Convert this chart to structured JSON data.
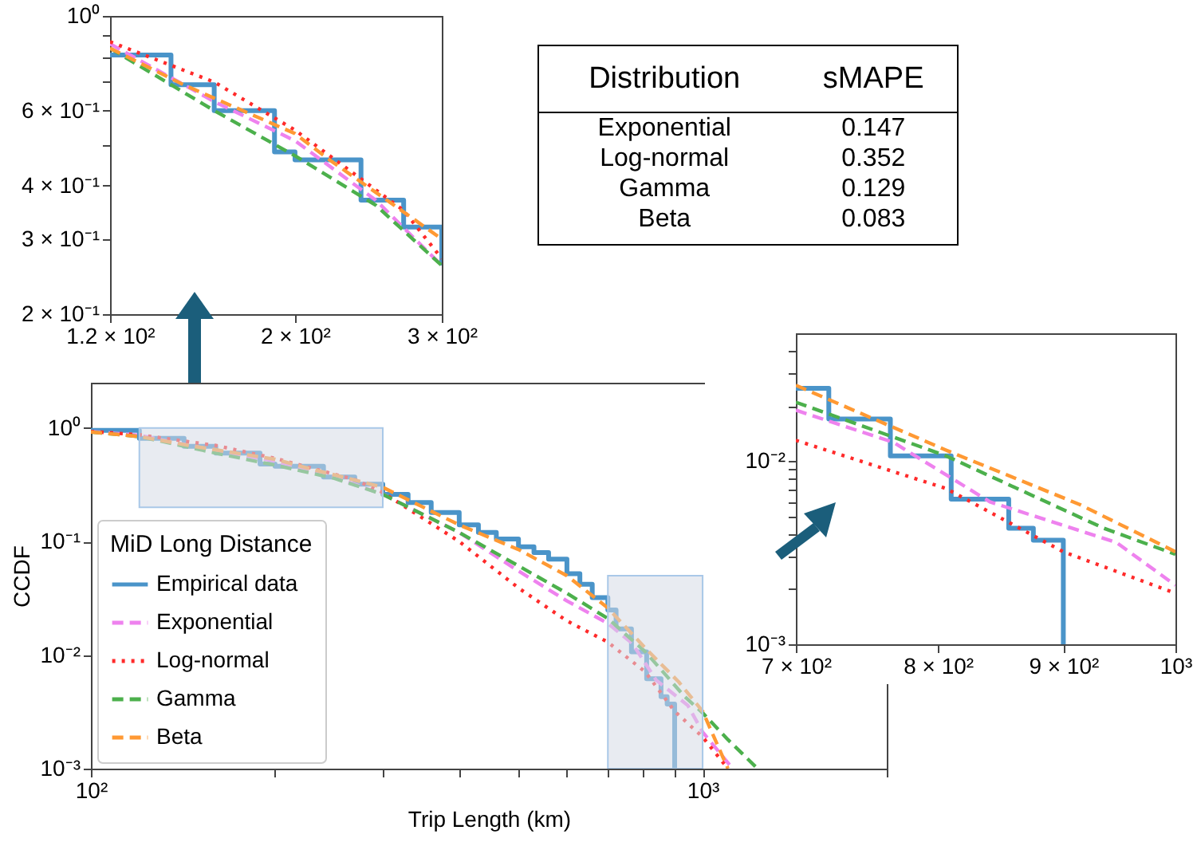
{
  "chart_data": [
    {
      "type": "line",
      "xlabel": "Trip Length (km)",
      "ylabel": "CCDF",
      "legend_title": "MiD Long Distance",
      "legend": "bottom left",
      "log": "xy",
      "xlim": [
        100,
        2000
      ],
      "ylim": [
        0.001,
        2.5
      ],
      "xticks": [
        {
          "value": 100,
          "label": "10²"
        },
        {
          "value": 200,
          "label": null
        },
        {
          "value": 300,
          "label": null
        },
        {
          "value": 400,
          "label": null
        },
        {
          "value": 500,
          "label": null
        },
        {
          "value": 600,
          "label": null
        },
        {
          "value": 700,
          "label": null
        },
        {
          "value": 800,
          "label": null
        },
        {
          "value": 900,
          "label": null
        },
        {
          "value": 1000,
          "label": "10³"
        },
        {
          "value": 2000,
          "label": null
        }
      ],
      "yticks": [
        {
          "value": 0.001,
          "label": "10⁻³"
        },
        {
          "value": 0.01,
          "label": "10⁻²"
        },
        {
          "value": 0.1,
          "label": "10⁻¹"
        },
        {
          "value": 1,
          "label": "10⁰"
        }
      ],
      "bands": [
        {
          "axis": "x",
          "from": 120,
          "to": 300,
          "color": "#d5dae6"
        },
        {
          "axis": "x",
          "from": 700,
          "to": 1000,
          "color": "#d5dae6"
        }
      ],
      "series": [
        {
          "name": "Empirical data",
          "type": "step",
          "color": "#4a94c9",
          "line_style": "solid",
          "x": [
            100,
            120,
            142,
            160,
            189,
            200,
            240,
            270,
            300,
            330,
            360,
            400,
            430,
            460,
            500,
            530,
            560,
            600,
            630,
            660,
            700,
            722,
            765,
            810,
            855,
            875,
            900
          ],
          "values": [
            0.95,
            0.81,
            0.69,
            0.6,
            0.48,
            0.46,
            0.37,
            0.32,
            0.26,
            0.22,
            0.18,
            0.14,
            0.12,
            0.105,
            0.09,
            0.08,
            0.07,
            0.052,
            0.042,
            0.032,
            0.025,
            0.017,
            0.0107,
            0.0062,
            0.0043,
            0.0037,
            0.001
          ]
        },
        {
          "name": "Exponential",
          "color": "#ee82ee",
          "line_style": "dashed",
          "x": [
            100,
            120,
            160,
            200,
            250,
            300,
            400,
            500,
            600,
            700,
            767,
            840,
            946,
            1000,
            1120
          ],
          "values": [
            0.93,
            0.86,
            0.63,
            0.51,
            0.37,
            0.26,
            0.12,
            0.055,
            0.03,
            0.019,
            0.0127,
            0.006,
            0.0036,
            0.0021,
            0.001
          ]
        },
        {
          "name": "Log-normal",
          "color": "#ff2a2a",
          "line_style": "dotted",
          "x": [
            100,
            120,
            160,
            200,
            270,
            300,
            400,
            500,
            600,
            700,
            806,
            900,
            1000,
            1100
          ],
          "values": [
            0.93,
            0.87,
            0.7,
            0.54,
            0.35,
            0.27,
            0.1,
            0.039,
            0.02,
            0.013,
            0.0071,
            0.0032,
            0.0019,
            0.001
          ]
        },
        {
          "name": "Gamma",
          "color": "#4cb04c",
          "line_style": "dashed",
          "x": [
            100,
            120,
            160,
            200,
            250,
            300,
            400,
            500,
            600,
            700,
            806,
            935,
            1000,
            1100,
            1230
          ],
          "values": [
            0.92,
            0.84,
            0.6,
            0.47,
            0.36,
            0.26,
            0.12,
            0.061,
            0.035,
            0.021,
            0.0107,
            0.0043,
            0.0031,
            0.0018,
            0.001
          ]
        },
        {
          "name": "Beta",
          "color": "#ff9933",
          "line_style": "dashed",
          "x": [
            100,
            120,
            147,
            200,
            220,
            263,
            300,
            400,
            500,
            600,
            700,
            806,
            914,
            1000,
            1100
          ],
          "values": [
            0.92,
            0.84,
            0.69,
            0.53,
            0.46,
            0.36,
            0.3,
            0.14,
            0.085,
            0.05,
            0.026,
            0.0115,
            0.0058,
            0.0032,
            0.001
          ]
        }
      ]
    },
    {
      "type": "line",
      "log": "xy",
      "xlim": [
        120,
        300
      ],
      "ylim": [
        0.2,
        1
      ],
      "xticks": [
        {
          "value": 120,
          "label": "1.2 × 10²"
        },
        {
          "value": 200,
          "label": "2 × 10²"
        },
        {
          "value": 300,
          "label": "3 × 10²"
        }
      ],
      "yticks": [
        {
          "value": 0.2,
          "label": "2 × 10⁻¹"
        },
        {
          "value": 0.3,
          "label": "3 × 10⁻¹"
        },
        {
          "value": 0.4,
          "label": "4 × 10⁻¹"
        },
        {
          "value": 0.5,
          "label": null
        },
        {
          "value": 0.6,
          "label": "6 × 10⁻¹"
        },
        {
          "value": 0.7,
          "label": null
        },
        {
          "value": 0.8,
          "label": null
        },
        {
          "value": 0.9,
          "label": null
        },
        {
          "value": 1,
          "label": "10⁰"
        }
      ],
      "series": [
        {
          "type": "step",
          "color": "#4a94c9",
          "line_style": "solid",
          "x": [
            120,
            142,
            160,
            189,
            200,
            240,
            270,
            300
          ],
          "values": [
            0.81,
            0.69,
            0.6,
            0.48,
            0.46,
            0.37,
            0.32,
            0.26
          ]
        },
        {
          "color": "#ee82ee",
          "line_style": "dashed",
          "x": [
            120,
            160,
            200,
            250,
            300
          ],
          "values": [
            0.86,
            0.63,
            0.51,
            0.37,
            0.26
          ]
        },
        {
          "color": "#ff2a2a",
          "line_style": "dotted",
          "x": [
            120,
            160,
            200,
            270,
            300
          ],
          "values": [
            0.87,
            0.7,
            0.54,
            0.35,
            0.27
          ]
        },
        {
          "color": "#4cb04c",
          "line_style": "dashed",
          "x": [
            120,
            160,
            200,
            250,
            300
          ],
          "values": [
            0.84,
            0.6,
            0.47,
            0.36,
            0.26
          ]
        },
        {
          "color": "#ff9933",
          "line_style": "dashed",
          "x": [
            120,
            147,
            200,
            220,
            263,
            300
          ],
          "values": [
            0.84,
            0.69,
            0.53,
            0.46,
            0.36,
            0.3
          ]
        }
      ]
    },
    {
      "type": "line",
      "log": "xy",
      "xlim": [
        700,
        1000
      ],
      "ylim": [
        0.001,
        0.05
      ],
      "xticks": [
        {
          "value": 700,
          "label": "7 × 10²"
        },
        {
          "value": 800,
          "label": "8 × 10²"
        },
        {
          "value": 900,
          "label": "9 × 10²"
        },
        {
          "value": 1000,
          "label": "10³"
        }
      ],
      "yticks": [
        {
          "value": 0.001,
          "label": "10⁻³"
        },
        {
          "value": 0.002,
          "label": null
        },
        {
          "value": 0.003,
          "label": null
        },
        {
          "value": 0.004,
          "label": null
        },
        {
          "value": 0.005,
          "label": null
        },
        {
          "value": 0.006,
          "label": null
        },
        {
          "value": 0.007,
          "label": null
        },
        {
          "value": 0.008,
          "label": null
        },
        {
          "value": 0.009,
          "label": null
        },
        {
          "value": 0.01,
          "label": "10⁻²"
        },
        {
          "value": 0.02,
          "label": null
        },
        {
          "value": 0.03,
          "label": null
        },
        {
          "value": 0.04,
          "label": null
        }
      ],
      "series": [
        {
          "type": "step",
          "color": "#4a94c9",
          "line_style": "solid",
          "x": [
            700,
            722,
            765,
            810,
            855,
            875,
            900
          ],
          "values": [
            0.025,
            0.017,
            0.0107,
            0.0062,
            0.0043,
            0.0037,
            0.001
          ]
        },
        {
          "color": "#ee82ee",
          "line_style": "dashed",
          "x": [
            700,
            767,
            840,
            946,
            1000
          ],
          "values": [
            0.019,
            0.0127,
            0.006,
            0.0036,
            0.0021
          ]
        },
        {
          "color": "#ff2a2a",
          "line_style": "dotted",
          "x": [
            700,
            806,
            900,
            1000
          ],
          "values": [
            0.013,
            0.0071,
            0.0032,
            0.0019
          ]
        },
        {
          "color": "#4cb04c",
          "line_style": "dashed",
          "x": [
            700,
            806,
            935,
            1000
          ],
          "values": [
            0.021,
            0.0107,
            0.0043,
            0.0031
          ]
        },
        {
          "color": "#ff9933",
          "line_style": "dashed",
          "x": [
            700,
            806,
            914,
            1000
          ],
          "values": [
            0.026,
            0.0115,
            0.0058,
            0.0032
          ]
        }
      ]
    },
    {
      "type": "other",
      "xlabel": "Distribution",
      "ylabel": "sMAPE",
      "data_labels": true,
      "categories": [
        "Exponential",
        "Log-normal",
        "Gamma",
        "Beta"
      ],
      "values": [
        0.147,
        0.352,
        0.129,
        0.083
      ]
    }
  ]
}
